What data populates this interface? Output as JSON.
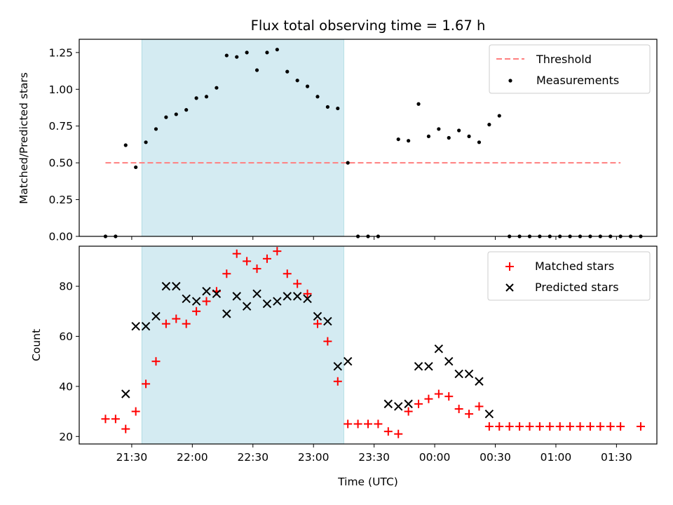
{
  "chart_data": [
    {
      "type": "scatter",
      "title": "Flux total observing time = 1.67 h",
      "xlabel": "",
      "ylabel": "Matched/Predicted stars",
      "ylim": [
        0,
        1.34
      ],
      "xlim": [
        "21:04",
        "01:50"
      ],
      "yticks": [
        "0.00",
        "0.25",
        "0.50",
        "0.75",
        "1.00",
        "1.25"
      ],
      "legend_position": "top-right",
      "shaded_interval": [
        "21:35",
        "23:15"
      ],
      "shade_color": "#d4ebf2",
      "threshold": {
        "name": "Threshold",
        "value": 0.5,
        "x_range": [
          "21:17",
          "01:32"
        ],
        "color": "#ff7f7f"
      },
      "series": [
        {
          "name": "Measurements",
          "color": "#000000",
          "points": [
            [
              "21:17",
              0.0
            ],
            [
              "21:22",
              0.0
            ],
            [
              "21:27",
              0.62
            ],
            [
              "21:32",
              0.47
            ],
            [
              "21:37",
              0.64
            ],
            [
              "21:42",
              0.73
            ],
            [
              "21:47",
              0.81
            ],
            [
              "21:52",
              0.83
            ],
            [
              "21:57",
              0.86
            ],
            [
              "22:02",
              0.94
            ],
            [
              "22:07",
              0.95
            ],
            [
              "22:12",
              1.01
            ],
            [
              "22:17",
              1.23
            ],
            [
              "22:22",
              1.22
            ],
            [
              "22:27",
              1.25
            ],
            [
              "22:32",
              1.13
            ],
            [
              "22:37",
              1.25
            ],
            [
              "22:42",
              1.27
            ],
            [
              "22:47",
              1.12
            ],
            [
              "22:52",
              1.06
            ],
            [
              "22:57",
              1.02
            ],
            [
              "23:02",
              0.95
            ],
            [
              "23:07",
              0.88
            ],
            [
              "23:12",
              0.87
            ],
            [
              "23:17",
              0.5
            ],
            [
              "23:22",
              0.0
            ],
            [
              "23:27",
              0.0
            ],
            [
              "23:32",
              0.0
            ],
            [
              "23:42",
              0.66
            ],
            [
              "23:47",
              0.65
            ],
            [
              "23:52",
              0.9
            ],
            [
              "23:57",
              0.68
            ],
            [
              "00:02",
              0.73
            ],
            [
              "00:07",
              0.67
            ],
            [
              "00:12",
              0.72
            ],
            [
              "00:17",
              0.68
            ],
            [
              "00:22",
              0.64
            ],
            [
              "00:27",
              0.76
            ],
            [
              "00:32",
              0.82
            ],
            [
              "00:37",
              0.0
            ],
            [
              "00:42",
              0.0
            ],
            [
              "00:47",
              0.0
            ],
            [
              "00:52",
              0.0
            ],
            [
              "00:57",
              0.0
            ],
            [
              "01:02",
              0.0
            ],
            [
              "01:07",
              0.0
            ],
            [
              "01:12",
              0.0
            ],
            [
              "01:17",
              0.0
            ],
            [
              "01:22",
              0.0
            ],
            [
              "01:27",
              0.0
            ],
            [
              "01:32",
              0.0
            ],
            [
              "01:37",
              0.0
            ],
            [
              "01:42",
              0.0
            ]
          ]
        }
      ]
    },
    {
      "type": "scatter",
      "title": "",
      "xlabel": "Time (UTC)",
      "ylabel": "Count",
      "ylim": [
        17,
        96
      ],
      "xlim": [
        "21:04",
        "01:50"
      ],
      "yticks": [
        "20",
        "40",
        "60",
        "80"
      ],
      "xticks": [
        "21:30",
        "22:00",
        "22:30",
        "23:00",
        "23:30",
        "00:00",
        "00:30",
        "01:00",
        "01:30"
      ],
      "legend_position": "top-right",
      "shaded_interval": [
        "21:35",
        "23:15"
      ],
      "shade_color": "#d4ebf2",
      "series": [
        {
          "name": "Matched stars",
          "marker": "plus",
          "color": "#ff0000",
          "points": [
            [
              "21:17",
              27
            ],
            [
              "21:22",
              27
            ],
            [
              "21:27",
              23
            ],
            [
              "21:32",
              30
            ],
            [
              "21:37",
              41
            ],
            [
              "21:42",
              50
            ],
            [
              "21:47",
              65
            ],
            [
              "21:52",
              67
            ],
            [
              "21:57",
              65
            ],
            [
              "22:02",
              70
            ],
            [
              "22:07",
              74
            ],
            [
              "22:12",
              78
            ],
            [
              "22:17",
              85
            ],
            [
              "22:22",
              93
            ],
            [
              "22:27",
              90
            ],
            [
              "22:32",
              87
            ],
            [
              "22:37",
              91
            ],
            [
              "22:42",
              94
            ],
            [
              "22:47",
              85
            ],
            [
              "22:52",
              81
            ],
            [
              "22:57",
              77
            ],
            [
              "23:02",
              65
            ],
            [
              "23:07",
              58
            ],
            [
              "23:12",
              42
            ],
            [
              "23:17",
              25
            ],
            [
              "23:22",
              25
            ],
            [
              "23:27",
              25
            ],
            [
              "23:32",
              25
            ],
            [
              "23:37",
              22
            ],
            [
              "23:42",
              21
            ],
            [
              "23:47",
              30
            ],
            [
              "23:52",
              33
            ],
            [
              "23:57",
              35
            ],
            [
              "00:02",
              37
            ],
            [
              "00:07",
              36
            ],
            [
              "00:12",
              31
            ],
            [
              "00:17",
              29
            ],
            [
              "00:22",
              32
            ],
            [
              "00:27",
              24
            ],
            [
              "00:32",
              24
            ],
            [
              "00:37",
              24
            ],
            [
              "00:42",
              24
            ],
            [
              "00:47",
              24
            ],
            [
              "00:52",
              24
            ],
            [
              "00:57",
              24
            ],
            [
              "01:02",
              24
            ],
            [
              "01:07",
              24
            ],
            [
              "01:12",
              24
            ],
            [
              "01:17",
              24
            ],
            [
              "01:22",
              24
            ],
            [
              "01:27",
              24
            ],
            [
              "01:32",
              24
            ],
            [
              "01:42",
              24
            ]
          ]
        },
        {
          "name": "Predicted stars",
          "marker": "x",
          "color": "#000000",
          "points": [
            [
              "21:27",
              37
            ],
            [
              "21:32",
              64
            ],
            [
              "21:37",
              64
            ],
            [
              "21:42",
              68
            ],
            [
              "21:47",
              80
            ],
            [
              "21:52",
              80
            ],
            [
              "21:57",
              75
            ],
            [
              "22:02",
              74
            ],
            [
              "22:07",
              78
            ],
            [
              "22:12",
              77
            ],
            [
              "22:17",
              69
            ],
            [
              "22:22",
              76
            ],
            [
              "22:27",
              72
            ],
            [
              "22:32",
              77
            ],
            [
              "22:37",
              73
            ],
            [
              "22:42",
              74
            ],
            [
              "22:47",
              76
            ],
            [
              "22:52",
              76
            ],
            [
              "22:57",
              75
            ],
            [
              "23:02",
              68
            ],
            [
              "23:07",
              66
            ],
            [
              "23:12",
              48
            ],
            [
              "23:17",
              50
            ],
            [
              "23:37",
              33
            ],
            [
              "23:42",
              32
            ],
            [
              "23:47",
              33
            ],
            [
              "23:52",
              48
            ],
            [
              "23:57",
              48
            ],
            [
              "00:02",
              55
            ],
            [
              "00:07",
              50
            ],
            [
              "00:12",
              45
            ],
            [
              "00:17",
              45
            ],
            [
              "00:22",
              42
            ],
            [
              "00:27",
              29
            ]
          ]
        }
      ]
    }
  ]
}
